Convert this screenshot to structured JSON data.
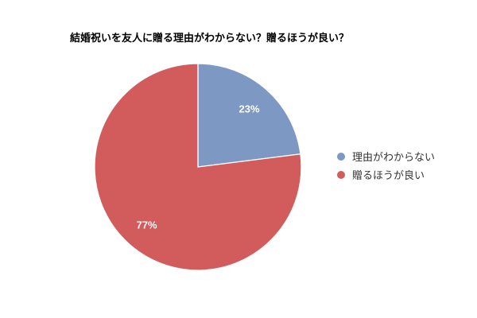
{
  "chart_data": {
    "type": "pie",
    "title": "結婚祝いを友人に贈る理由がわからない？贈るほうが良い？",
    "categories": [
      "理由がわからない",
      "贈るほうが良い"
    ],
    "values": [
      23,
      77
    ],
    "labels": [
      "23%",
      "77%"
    ],
    "colors": [
      "#7d98c3",
      "#d25c5c"
    ],
    "label_color": "#ffffff",
    "title_color": "#000000",
    "background_color": "#ffffff",
    "legend_position": "right",
    "start_angle_deg": 0,
    "direction": "clockwise"
  },
  "legend": {
    "items": [
      {
        "label": "理由がわからない",
        "color": "#7d98c3"
      },
      {
        "label": "贈るほうが良い",
        "color": "#d25c5c"
      }
    ]
  }
}
